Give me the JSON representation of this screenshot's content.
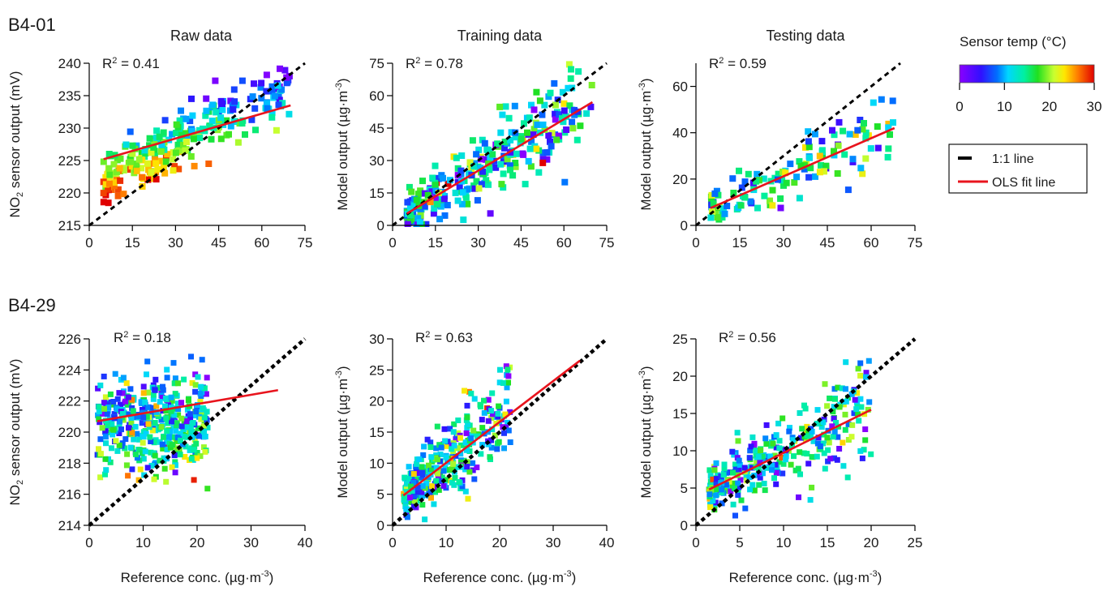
{
  "chart_data": {
    "type": "scatter",
    "colorbar": {
      "title": "Sensor temp (°C)",
      "range": [
        0,
        30
      ],
      "ticks": [
        "0",
        "10",
        "20",
        "30"
      ]
    },
    "legend": {
      "entries": [
        {
          "label": "1:1 line",
          "style": "dashed-black"
        },
        {
          "label": "OLS fit line",
          "style": "solid-red"
        }
      ],
      "placement": "right"
    },
    "row_labels": [
      "B4-01",
      "B4-29"
    ],
    "xlabel": "Reference conc. (µg·m⁻³)",
    "panels": [
      {
        "id": "b401-raw",
        "row": 0,
        "col": 0,
        "title": "Raw data",
        "r2": "R² = 0.41",
        "ylabel": "NO₂ sensor output (mV)",
        "xlim": [
          0,
          75
        ],
        "ylim": [
          215,
          240
        ],
        "xticks": [
          0,
          15,
          30,
          45,
          60,
          75
        ],
        "yticks": [
          215,
          220,
          225,
          230,
          235,
          240
        ],
        "one_to_one": [
          [
            0,
            215
          ],
          [
            75,
            240
          ]
        ],
        "fit": [
          [
            5,
            225.2
          ],
          [
            70,
            233.5
          ]
        ],
        "seed": 11,
        "n": 260,
        "model": "raw",
        "xmin": 5,
        "xmax": 70,
        "yfn": [
          225.2,
          0.128
        ],
        "noise": 2.6
      },
      {
        "id": "b401-train",
        "row": 0,
        "col": 1,
        "title": "Training data",
        "r2": "R² = 0.78",
        "ylabel": "Model output (µg·m⁻³)",
        "xlim": [
          0,
          75
        ],
        "ylim": [
          0,
          75
        ],
        "xticks": [
          0,
          15,
          30,
          45,
          60,
          75
        ],
        "yticks": [
          0,
          15,
          30,
          45,
          60,
          75
        ],
        "one_to_one": [
          [
            0,
            0
          ],
          [
            75,
            75
          ]
        ],
        "fit": [
          [
            5,
            5.5
          ],
          [
            70,
            57
          ]
        ],
        "seed": 23,
        "n": 300,
        "model": "model",
        "xmin": 5,
        "xmax": 70,
        "yfn": [
          1.5,
          0.79
        ],
        "noise": 8
      },
      {
        "id": "b401-test",
        "row": 0,
        "col": 2,
        "title": "Testing data",
        "r2": "R² = 0.59",
        "ylabel": "Model output (µg·m⁻³)",
        "xlim": [
          0,
          75
        ],
        "ylim": [
          0,
          70
        ],
        "xticks": [
          0,
          15,
          30,
          45,
          60,
          75
        ],
        "yticks": [
          0,
          20,
          40,
          60
        ],
        "one_to_one": [
          [
            0,
            0
          ],
          [
            70,
            70
          ]
        ],
        "fit": [
          [
            5,
            7.5
          ],
          [
            68,
            42
          ]
        ],
        "seed": 37,
        "n": 130,
        "model": "model",
        "xmin": 5,
        "xmax": 68,
        "yfn": [
          4.8,
          0.55
        ],
        "noise": 6
      },
      {
        "id": "b429-raw",
        "row": 1,
        "col": 0,
        "title": "",
        "r2": "R² = 0.18",
        "ylabel": "NO₂ sensor output (mV)",
        "xlim": [
          0,
          40
        ],
        "ylim": [
          214,
          226
        ],
        "xticks": [
          0,
          10,
          20,
          30,
          40
        ],
        "yticks": [
          214,
          216,
          218,
          220,
          222,
          224,
          226
        ],
        "one_to_one": [
          [
            0,
            214
          ],
          [
            40,
            226
          ]
        ],
        "fit": [
          [
            1.5,
            220.7
          ],
          [
            35,
            222.7
          ]
        ],
        "seed": 41,
        "n": 420,
        "model": "raw2",
        "xmin": 1.5,
        "xmax": 22,
        "yfn": [
          220.6,
          0.06
        ],
        "noise": 1.5
      },
      {
        "id": "b429-train",
        "row": 1,
        "col": 1,
        "title": "",
        "r2": "R² = 0.63",
        "ylabel": "Model output (µg·m⁻³)",
        "xlim": [
          0,
          40
        ],
        "ylim": [
          0,
          30
        ],
        "xticks": [
          0,
          10,
          20,
          30,
          40
        ],
        "yticks": [
          0,
          5,
          10,
          15,
          20,
          25,
          30
        ],
        "one_to_one": [
          [
            0,
            0
          ],
          [
            40,
            30
          ]
        ],
        "fit": [
          [
            2,
            4.8
          ],
          [
            35,
            26.5
          ]
        ],
        "seed": 53,
        "n": 330,
        "model": "model",
        "xmin": 2,
        "xmax": 22,
        "yfn": [
          3.5,
          0.66
        ],
        "noise": 3.2
      },
      {
        "id": "b429-test",
        "row": 1,
        "col": 2,
        "title": "",
        "r2": "R² = 0.56",
        "ylabel": "Model output (µg·m⁻³)",
        "xlim": [
          0,
          25
        ],
        "ylim": [
          0,
          25
        ],
        "xticks": [
          0,
          5,
          10,
          15,
          20,
          25
        ],
        "yticks": [
          0,
          5,
          10,
          15,
          20,
          25
        ],
        "one_to_one": [
          [
            0,
            0
          ],
          [
            25,
            25
          ]
        ],
        "fit": [
          [
            1.5,
            4.8
          ],
          [
            20,
            15.5
          ]
        ],
        "seed": 67,
        "n": 330,
        "model": "model",
        "xmin": 1.5,
        "xmax": 20,
        "yfn": [
          3.9,
          0.58
        ],
        "noise": 2.3
      }
    ]
  }
}
